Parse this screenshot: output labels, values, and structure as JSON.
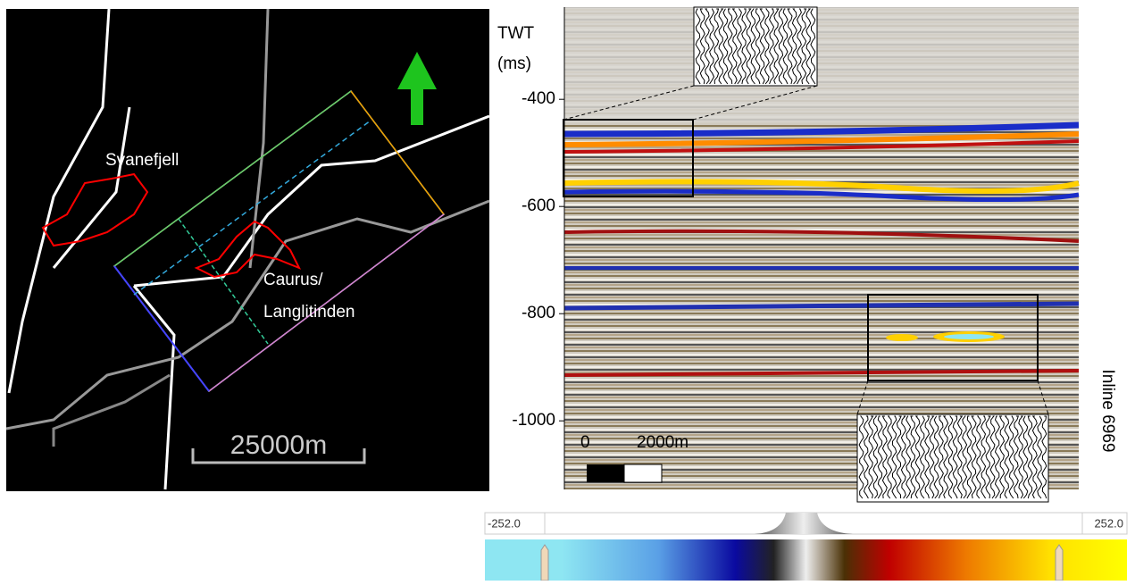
{
  "map": {
    "labels": [
      "Svanefjell",
      "Caurus/",
      "Langlitinden"
    ],
    "scale_bar": "25000m"
  },
  "seismic": {
    "axis_title": [
      "TWT",
      "(ms)"
    ],
    "ylim": [
      -228,
      -1128
    ],
    "yticks": [
      -400,
      -600,
      -800,
      -1000
    ],
    "scale_bar": [
      "0",
      "2000m"
    ],
    "inline_label": "Inline 6969"
  },
  "colorbar": {
    "min_label": "-252.0",
    "max_label": "252.0"
  }
}
